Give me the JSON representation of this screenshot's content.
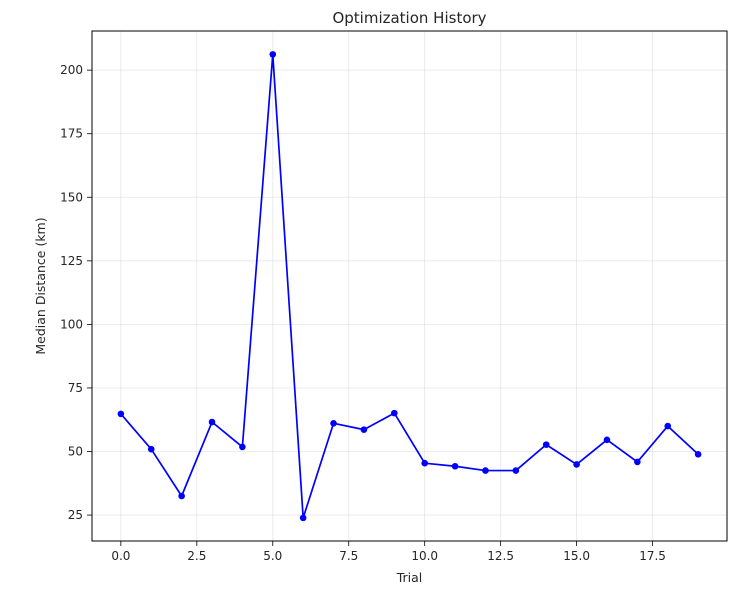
{
  "chart_data": {
    "type": "line",
    "title": "Optimization History",
    "xlabel": "Trial",
    "ylabel": "Median Distance (km)",
    "x": [
      0,
      1,
      2,
      3,
      4,
      5,
      6,
      7,
      8,
      9,
      10,
      11,
      12,
      13,
      14,
      15,
      16,
      17,
      18,
      19
    ],
    "series": [
      {
        "values": [
          64.8,
          50.9,
          32.5,
          61.6,
          51.8,
          206.2,
          23.9,
          61.1,
          58.6,
          65.1,
          45.4,
          44.2,
          42.5,
          42.5,
          52.7,
          44.9,
          54.6,
          45.9,
          60.0,
          48.9
        ],
        "color": "#0000ff",
        "marker": "circle"
      }
    ],
    "xlim": [
      -0.95,
      19.95
    ],
    "ylim": [
      14.8,
      215.4
    ],
    "xticks": [
      0.0,
      2.5,
      5.0,
      7.5,
      10.0,
      12.5,
      15.0,
      17.5
    ],
    "xtick_labels": [
      "0.0",
      "2.5",
      "5.0",
      "7.5",
      "10.0",
      "12.5",
      "15.0",
      "17.5"
    ],
    "yticks": [
      25,
      50,
      75,
      100,
      125,
      150,
      175,
      200
    ],
    "ytick_labels": [
      "25",
      "50",
      "75",
      "100",
      "125",
      "150",
      "175",
      "200"
    ],
    "grid": true,
    "legend": "none"
  }
}
